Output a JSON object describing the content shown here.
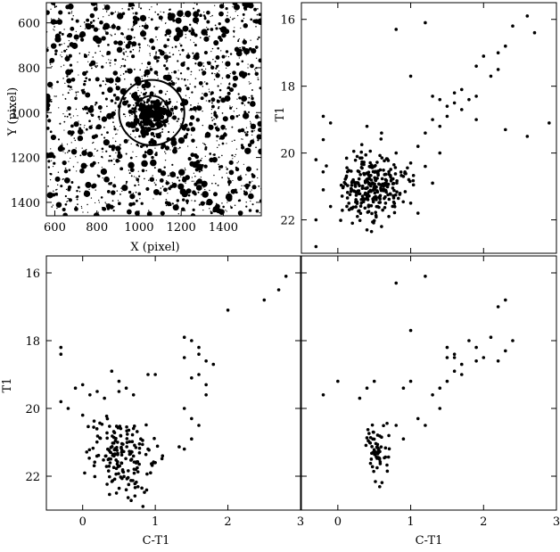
{
  "chart_data": [
    {
      "type": "scatter",
      "panel": "top-left",
      "xlabel": "X (pixel)",
      "ylabel": "Y (pixel)",
      "xlim": [
        560,
        1580
      ],
      "ylim": [
        1460,
        510
      ],
      "xticks": [
        600,
        800,
        1000,
        1200,
        1400
      ],
      "yticks": [
        600,
        800,
        1000,
        1200,
        1400
      ],
      "circles": [
        {
          "cx": 1060,
          "cy": 1000,
          "r": 80
        },
        {
          "cx": 1060,
          "cy": 1000,
          "r": 155
        }
      ],
      "star_field": {
        "background_count": 1500,
        "cluster_center": [
          1060,
          1000
        ],
        "cluster_count": 220
      }
    },
    {
      "type": "scatter",
      "panel": "top-right",
      "xlabel": "",
      "ylabel": "T1",
      "xlim": [
        -0.5,
        3
      ],
      "ylim": [
        23,
        15.5
      ],
      "xticks": [
        0,
        1,
        2,
        3
      ],
      "yticks": [
        16,
        18,
        20,
        22
      ],
      "points": [
        [
          0.8,
          16.3
        ],
        [
          1.2,
          16.1
        ],
        [
          2.6,
          15.9
        ],
        [
          2.4,
          16.2
        ],
        [
          2.3,
          16.8
        ],
        [
          2.7,
          16.4
        ],
        [
          2.2,
          17.0
        ],
        [
          2.0,
          17.1
        ],
        [
          1.9,
          17.4
        ],
        [
          2.1,
          17.7
        ],
        [
          2.2,
          17.5
        ],
        [
          1.0,
          17.7
        ],
        [
          1.3,
          18.3
        ],
        [
          1.5,
          18.6
        ],
        [
          1.6,
          18.5
        ],
        [
          1.7,
          18.7
        ],
        [
          1.8,
          18.4
        ],
        [
          1.6,
          18.2
        ],
        [
          1.5,
          18.9
        ],
        [
          1.4,
          18.4
        ],
        [
          1.7,
          18.1
        ],
        [
          1.9,
          18.3
        ],
        [
          1.4,
          19.2
        ],
        [
          1.2,
          19.4
        ],
        [
          1.3,
          19.0
        ],
        [
          1.1,
          19.8
        ],
        [
          1.0,
          20.3
        ],
        [
          0.9,
          20.7
        ],
        [
          0.8,
          20.0
        ],
        [
          0.6,
          19.4
        ],
        [
          0.4,
          19.2
        ],
        [
          -0.2,
          18.9
        ],
        [
          -0.1,
          19.1
        ],
        [
          -0.2,
          19.6
        ],
        [
          -0.3,
          20.2
        ],
        [
          -0.2,
          21.1
        ],
        [
          -0.1,
          21.6
        ],
        [
          -0.3,
          22.0
        ],
        [
          -0.3,
          22.8
        ],
        [
          1.9,
          19.0
        ],
        [
          2.3,
          19.3
        ],
        [
          2.6,
          19.5
        ],
        [
          2.9,
          19.1
        ],
        [
          1.2,
          20.4
        ],
        [
          1.3,
          20.9
        ],
        [
          1.4,
          20.0
        ],
        [
          1.0,
          21.5
        ],
        [
          1.1,
          21.8
        ],
        [
          0.2,
          22.1
        ],
        [
          0.4,
          22.3
        ],
        [
          0.6,
          22.2
        ],
        [
          0.7,
          21.9
        ]
      ],
      "cluster_points": {
        "center": [
          0.45,
          21.0
        ],
        "count": 280
      }
    },
    {
      "type": "scatter",
      "panel": "bottom-left",
      "xlabel": "C-T1",
      "ylabel": "T1",
      "xlim": [
        -0.5,
        3
      ],
      "ylim": [
        23,
        15.5
      ],
      "xticks": [
        0,
        1,
        2,
        3
      ],
      "yticks": [
        16,
        18,
        20,
        22
      ],
      "points": [
        [
          2.8,
          16.1
        ],
        [
          2.7,
          16.5
        ],
        [
          2.5,
          16.8
        ],
        [
          2.0,
          17.1
        ],
        [
          -0.3,
          18.2
        ],
        [
          -0.3,
          18.4
        ],
        [
          1.4,
          17.9
        ],
        [
          1.5,
          18.0
        ],
        [
          1.6,
          18.2
        ],
        [
          1.7,
          18.6
        ],
        [
          1.8,
          18.7
        ],
        [
          1.6,
          19.0
        ],
        [
          1.7,
          19.3
        ],
        [
          1.5,
          19.1
        ],
        [
          1.4,
          18.5
        ],
        [
          1.6,
          18.4
        ],
        [
          1.7,
          19.6
        ],
        [
          0.4,
          18.9
        ],
        [
          0.5,
          19.2
        ],
        [
          0.6,
          19.4
        ],
        [
          0.7,
          19.6
        ],
        [
          0.9,
          19.0
        ],
        [
          1.0,
          19.0
        ],
        [
          -0.1,
          19.4
        ],
        [
          0.0,
          19.3
        ],
        [
          0.1,
          19.6
        ],
        [
          0.2,
          19.5
        ],
        [
          0.3,
          19.7
        ],
        [
          0.5,
          19.5
        ],
        [
          -0.2,
          20.0
        ],
        [
          -0.3,
          19.8
        ],
        [
          0.0,
          20.2
        ],
        [
          1.4,
          20.0
        ],
        [
          1.5,
          20.3
        ],
        [
          1.6,
          20.5
        ],
        [
          1.5,
          20.9
        ],
        [
          1.4,
          21.2
        ],
        [
          1.1,
          21.4
        ],
        [
          1.0,
          21.6
        ],
        [
          0.9,
          21.2
        ],
        [
          0.8,
          20.9
        ],
        [
          0.6,
          22.4
        ]
      ],
      "cluster_points": {
        "center": [
          0.55,
          21.4
        ],
        "count": 170
      }
    },
    {
      "type": "scatter",
      "panel": "bottom-right",
      "xlabel": "C-T1",
      "ylabel": "",
      "xlim": [
        -0.5,
        3
      ],
      "ylim": [
        23,
        15.5
      ],
      "xticks": [
        0,
        1,
        2,
        3
      ],
      "yticks": [
        16,
        18,
        20,
        22
      ],
      "points": [
        [
          0.8,
          16.3
        ],
        [
          1.2,
          16.1
        ],
        [
          2.3,
          16.8
        ],
        [
          2.2,
          17.0
        ],
        [
          1.0,
          17.7
        ],
        [
          2.1,
          17.9
        ],
        [
          1.9,
          18.2
        ],
        [
          1.8,
          18.0
        ],
        [
          1.6,
          18.4
        ],
        [
          1.5,
          18.5
        ],
        [
          1.7,
          18.7
        ],
        [
          1.6,
          18.9
        ],
        [
          1.5,
          19.2
        ],
        [
          1.4,
          19.4
        ],
        [
          1.3,
          19.6
        ],
        [
          1.4,
          20.0
        ],
        [
          1.2,
          20.5
        ],
        [
          2.3,
          18.3
        ],
        [
          2.4,
          18.0
        ],
        [
          2.2,
          18.6
        ],
        [
          0.5,
          19.2
        ],
        [
          0.4,
          19.4
        ],
        [
          0.3,
          19.7
        ],
        [
          0.0,
          19.2
        ],
        [
          -0.2,
          19.6
        ],
        [
          0.9,
          19.4
        ],
        [
          1.0,
          19.2
        ],
        [
          1.1,
          20.3
        ],
        [
          0.8,
          20.5
        ],
        [
          0.7,
          20.8
        ],
        [
          0.9,
          20.9
        ],
        [
          1.6,
          18.5
        ],
        [
          1.7,
          19.0
        ],
        [
          1.5,
          18.2
        ],
        [
          1.9,
          18.6
        ],
        [
          2.0,
          18.5
        ]
      ],
      "cluster_points": {
        "center": [
          0.52,
          21.2
        ],
        "count": 60
      }
    }
  ]
}
